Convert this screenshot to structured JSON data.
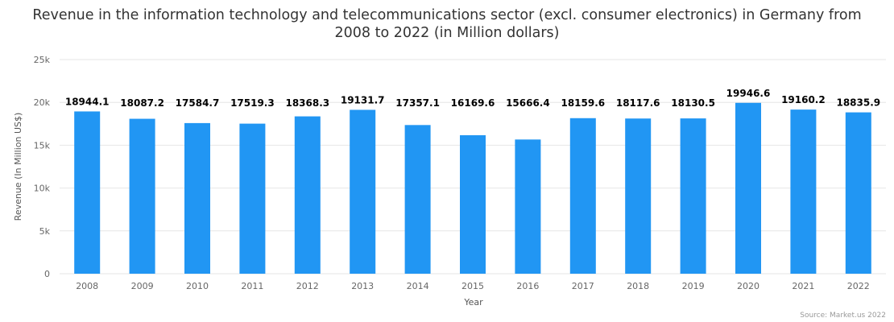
{
  "chart_data": {
    "type": "bar",
    "title": "Revenue in the information technology and telecommunications sector (excl. consumer electronics) in Germany from 2008 to 2022 (in Million dollars)",
    "xlabel": "Year",
    "ylabel": "Revenue (In Million US$)",
    "categories": [
      "2008",
      "2009",
      "2010",
      "2011",
      "2012",
      "2013",
      "2014",
      "2015",
      "2016",
      "2017",
      "2018",
      "2019",
      "2020",
      "2021",
      "2022"
    ],
    "values": [
      18944.1,
      18087.2,
      17584.7,
      17519.3,
      18368.3,
      19131.7,
      17357.1,
      16169.6,
      15666.4,
      18159.6,
      18117.6,
      18130.5,
      19946.6,
      19160.2,
      18835.9
    ],
    "data_labels": [
      "18944.1",
      "18087.2",
      "17584.7",
      "17519.3",
      "18368.3",
      "19131.7",
      "17357.1",
      "16169.6",
      "15666.4",
      "18159.6",
      "18117.6",
      "18130.5",
      "19946.6",
      "19160.2",
      "18835.9"
    ],
    "ylim": [
      0,
      25000
    ],
    "yticks": [
      0,
      5000,
      10000,
      15000,
      20000,
      25000
    ],
    "ytick_labels": [
      "0",
      "5k",
      "10k",
      "15k",
      "20k",
      "25k"
    ],
    "grid": true,
    "legend": "none",
    "colors": {
      "bar": "#2196f3",
      "grid": "#e6e6e6"
    }
  },
  "source": "Source: Market.us 2022"
}
